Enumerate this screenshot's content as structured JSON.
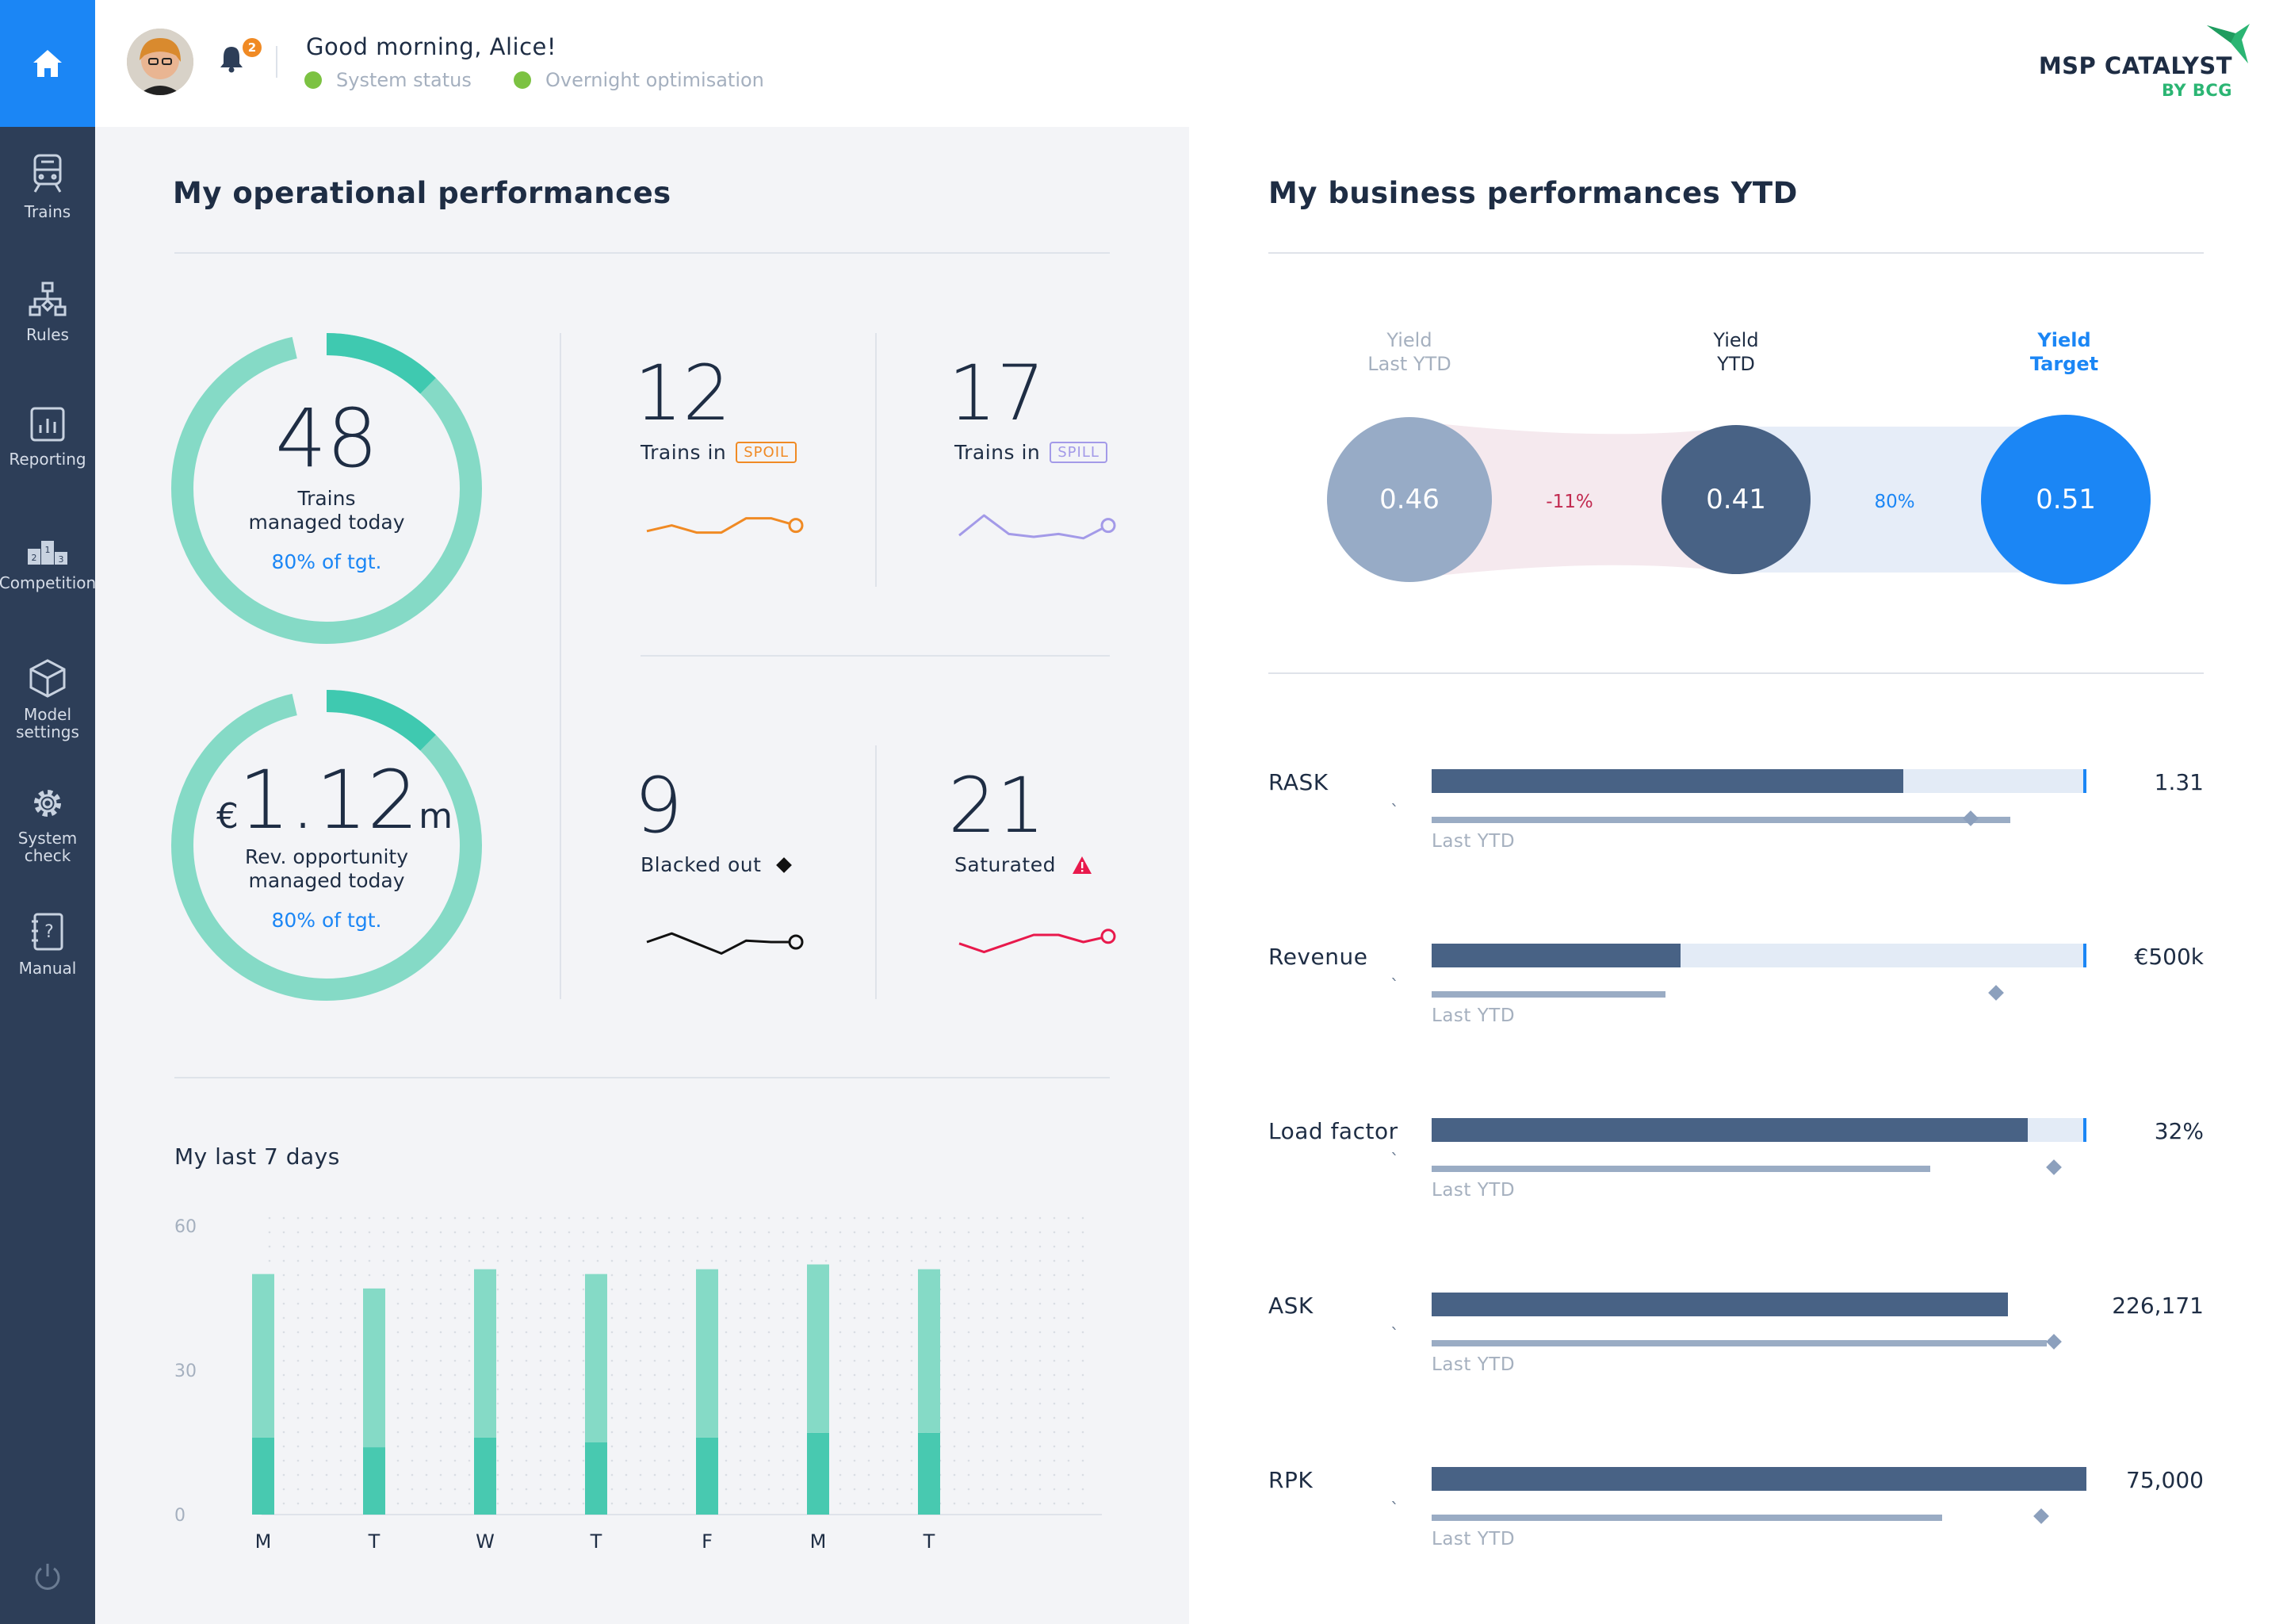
{
  "sidebar": {
    "items": [
      {
        "label": "Trains",
        "icon": "train-icon"
      },
      {
        "label": "Rules",
        "icon": "hierarchy-icon"
      },
      {
        "label": "Reporting",
        "icon": "reporting-icon"
      },
      {
        "label": "Competition",
        "icon": "podium-icon"
      },
      {
        "label": "Model settings",
        "icon": "cube-icon"
      },
      {
        "label": "System check",
        "icon": "gear-icon"
      },
      {
        "label": "Manual",
        "icon": "manual-icon"
      }
    ]
  },
  "header": {
    "greeting": "Good morning, Alice!",
    "notifications": "2",
    "status1": "System status",
    "status2": "Overnight optimisation",
    "logo": "MSP CATALYST",
    "logo_sub": "BY BCG"
  },
  "operational": {
    "title": "My operational performances",
    "trains_managed": {
      "value": "48",
      "label1": "Trains",
      "label2": "managed today",
      "target": "80% of tgt.",
      "progress": 0.8
    },
    "rev_opportunity": {
      "currency": "€",
      "value": "1.12",
      "unit": "m",
      "label1": "Rev. opportunity",
      "label2": "managed today",
      "target": "80% of tgt.",
      "progress": 0.8
    },
    "kpis": [
      {
        "value": "12",
        "label": "Trains in",
        "tag": "SPOIL",
        "color": "#f08a24",
        "spark": [
          0.55,
          0.35,
          0.6,
          0.6,
          0.1,
          0.1,
          0.35
        ]
      },
      {
        "value": "17",
        "label": "Trains in",
        "tag": "SPILL",
        "color": "#a39ae8",
        "spark": [
          0.7,
          0.0,
          0.65,
          0.75,
          0.65,
          0.8,
          0.35
        ]
      },
      {
        "value": "9",
        "label": "Blacked out",
        "tag": "",
        "color": "#111111",
        "spark": [
          0.5,
          0.2,
          0.55,
          0.9,
          0.45,
          0.5,
          0.5
        ]
      },
      {
        "value": "21",
        "label": "Saturated",
        "tag": "",
        "color": "#e8194c",
        "spark": [
          0.55,
          0.85,
          0.55,
          0.25,
          0.25,
          0.5,
          0.3
        ]
      }
    ]
  },
  "week": {
    "title": "My last 7 days",
    "chart_data": {
      "type": "bar",
      "categories": [
        "M",
        "T",
        "W",
        "T",
        "F",
        "M",
        "T"
      ],
      "series": [
        {
          "values": [
            16,
            14,
            16,
            15,
            16,
            17,
            17
          ],
          "color": "#48c9b0"
        },
        {
          "values": [
            34,
            33,
            35,
            35,
            35,
            35,
            34
          ],
          "color": "#85dac6"
        }
      ],
      "yticks": [
        "60",
        "30",
        "0"
      ],
      "ylim": [
        0,
        60
      ]
    }
  },
  "business": {
    "title": "My business performances YTD",
    "yields": [
      {
        "label1": "Yield",
        "label2": "Last YTD",
        "value": "0.46",
        "color": "#97abc6"
      },
      {
        "label1": "Yield",
        "label2": "YTD",
        "value": "0.41",
        "color": "#486285"
      },
      {
        "label1": "Yield",
        "label2": "Target",
        "value": "0.51",
        "color": "#1b86f5"
      }
    ],
    "delta1": "-11%",
    "delta2": "80%",
    "ly_label": "Last YTD",
    "tick": "`",
    "metrics": [
      {
        "label": "RASK",
        "value": "1.31",
        "fill": 0.72,
        "target": 1.0,
        "ly": 0.94,
        "ly_diamond": 0.84
      },
      {
        "label": "Revenue",
        "value": "€500k",
        "fill": 0.38,
        "target": 1.0,
        "ly": 0.38,
        "ly_diamond": 0.88
      },
      {
        "label": "Load factor",
        "value": "32%",
        "fill": 0.91,
        "target": 1.0,
        "ly": 0.81,
        "ly_diamond": 0.97
      },
      {
        "label": "ASK",
        "value": "226,171",
        "fill": 0.88,
        "target": null,
        "ly": 1.0,
        "ly_diamond": 0.97
      },
      {
        "label": "RPK",
        "value": "75,000",
        "fill": 1.0,
        "target": null,
        "ly": 0.83,
        "ly_diamond": 0.95
      }
    ]
  }
}
